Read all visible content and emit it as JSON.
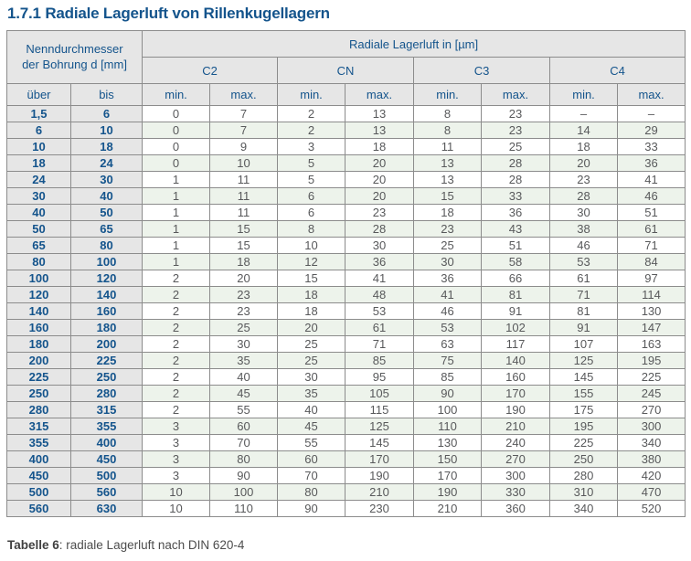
{
  "page": {
    "title": "1.7.1 Radiale Lagerluft von Rillenkugellagern",
    "caption": {
      "bold": "Tabelle 6",
      "rest": ": radiale Lagerluft nach DIN 620-4"
    }
  },
  "colors": {
    "accent_blue": "#14548c",
    "header_grey": "#e6e6e6",
    "row_green": "#edf3eb",
    "data_text_grey": "#58595b",
    "border_grey": "#8c8c8c"
  },
  "table": {
    "header": {
      "diameter_label_line1": "Nenndurchmesser",
      "diameter_label_line2": "der Bohrung d [mm]",
      "clearance_label": "Radiale Lagerluft in [µm]",
      "classes": [
        "C2",
        "CN",
        "C3",
        "C4"
      ],
      "col_uber": "über",
      "col_bis": "bis",
      "col_min": "min.",
      "col_max": "max."
    },
    "rows": [
      [
        "1,5",
        "6",
        "0",
        "7",
        "2",
        "13",
        "8",
        "23",
        "–",
        "–"
      ],
      [
        "6",
        "10",
        "0",
        "7",
        "2",
        "13",
        "8",
        "23",
        "14",
        "29"
      ],
      [
        "10",
        "18",
        "0",
        "9",
        "3",
        "18",
        "11",
        "25",
        "18",
        "33"
      ],
      [
        "18",
        "24",
        "0",
        "10",
        "5",
        "20",
        "13",
        "28",
        "20",
        "36"
      ],
      [
        "24",
        "30",
        "1",
        "11",
        "5",
        "20",
        "13",
        "28",
        "23",
        "41"
      ],
      [
        "30",
        "40",
        "1",
        "11",
        "6",
        "20",
        "15",
        "33",
        "28",
        "46"
      ],
      [
        "40",
        "50",
        "1",
        "11",
        "6",
        "23",
        "18",
        "36",
        "30",
        "51"
      ],
      [
        "50",
        "65",
        "1",
        "15",
        "8",
        "28",
        "23",
        "43",
        "38",
        "61"
      ],
      [
        "65",
        "80",
        "1",
        "15",
        "10",
        "30",
        "25",
        "51",
        "46",
        "71"
      ],
      [
        "80",
        "100",
        "1",
        "18",
        "12",
        "36",
        "30",
        "58",
        "53",
        "84"
      ],
      [
        "100",
        "120",
        "2",
        "20",
        "15",
        "41",
        "36",
        "66",
        "61",
        "97"
      ],
      [
        "120",
        "140",
        "2",
        "23",
        "18",
        "48",
        "41",
        "81",
        "71",
        "114"
      ],
      [
        "140",
        "160",
        "2",
        "23",
        "18",
        "53",
        "46",
        "91",
        "81",
        "130"
      ],
      [
        "160",
        "180",
        "2",
        "25",
        "20",
        "61",
        "53",
        "102",
        "91",
        "147"
      ],
      [
        "180",
        "200",
        "2",
        "30",
        "25",
        "71",
        "63",
        "117",
        "107",
        "163"
      ],
      [
        "200",
        "225",
        "2",
        "35",
        "25",
        "85",
        "75",
        "140",
        "125",
        "195"
      ],
      [
        "225",
        "250",
        "2",
        "40",
        "30",
        "95",
        "85",
        "160",
        "145",
        "225"
      ],
      [
        "250",
        "280",
        "2",
        "45",
        "35",
        "105",
        "90",
        "170",
        "155",
        "245"
      ],
      [
        "280",
        "315",
        "2",
        "55",
        "40",
        "115",
        "100",
        "190",
        "175",
        "270"
      ],
      [
        "315",
        "355",
        "3",
        "60",
        "45",
        "125",
        "110",
        "210",
        "195",
        "300"
      ],
      [
        "355",
        "400",
        "3",
        "70",
        "55",
        "145",
        "130",
        "240",
        "225",
        "340"
      ],
      [
        "400",
        "450",
        "3",
        "80",
        "60",
        "170",
        "150",
        "270",
        "250",
        "380"
      ],
      [
        "450",
        "500",
        "3",
        "90",
        "70",
        "190",
        "170",
        "300",
        "280",
        "420"
      ],
      [
        "500",
        "560",
        "10",
        "100",
        "80",
        "210",
        "190",
        "330",
        "310",
        "470"
      ],
      [
        "560",
        "630",
        "10",
        "110",
        "90",
        "230",
        "210",
        "360",
        "340",
        "520"
      ]
    ]
  }
}
